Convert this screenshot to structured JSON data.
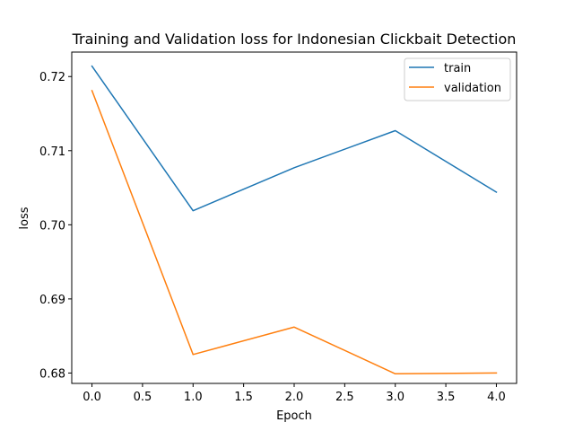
{
  "chart_data": {
    "type": "line",
    "title": "Training and Validation loss for Indonesian Clickbait Detection",
    "xlabel": "Epoch",
    "ylabel": "loss",
    "x": [
      0,
      1,
      2,
      3,
      4
    ],
    "xlim": [
      -0.2,
      4.2
    ],
    "ylim": [
      0.6786,
      0.7233
    ],
    "xticks": [
      0.0,
      0.5,
      1.0,
      1.5,
      2.0,
      2.5,
      3.0,
      3.5,
      4.0
    ],
    "xtick_labels": [
      "0.0",
      "0.5",
      "1.0",
      "1.5",
      "2.0",
      "2.5",
      "3.0",
      "3.5",
      "4.0"
    ],
    "yticks": [
      0.68,
      0.69,
      0.7,
      0.71,
      0.72
    ],
    "ytick_labels": [
      "0.68",
      "0.69",
      "0.70",
      "0.71",
      "0.72"
    ],
    "grid": false,
    "legend_position": "top-right",
    "series": [
      {
        "name": "train",
        "color": "#1f77b4",
        "values": [
          0.7214,
          0.7019,
          0.7077,
          0.7127,
          0.7044
        ]
      },
      {
        "name": "validation",
        "color": "#ff7f0e",
        "values": [
          0.7181,
          0.6825,
          0.6862,
          0.6799,
          0.68
        ]
      }
    ]
  }
}
